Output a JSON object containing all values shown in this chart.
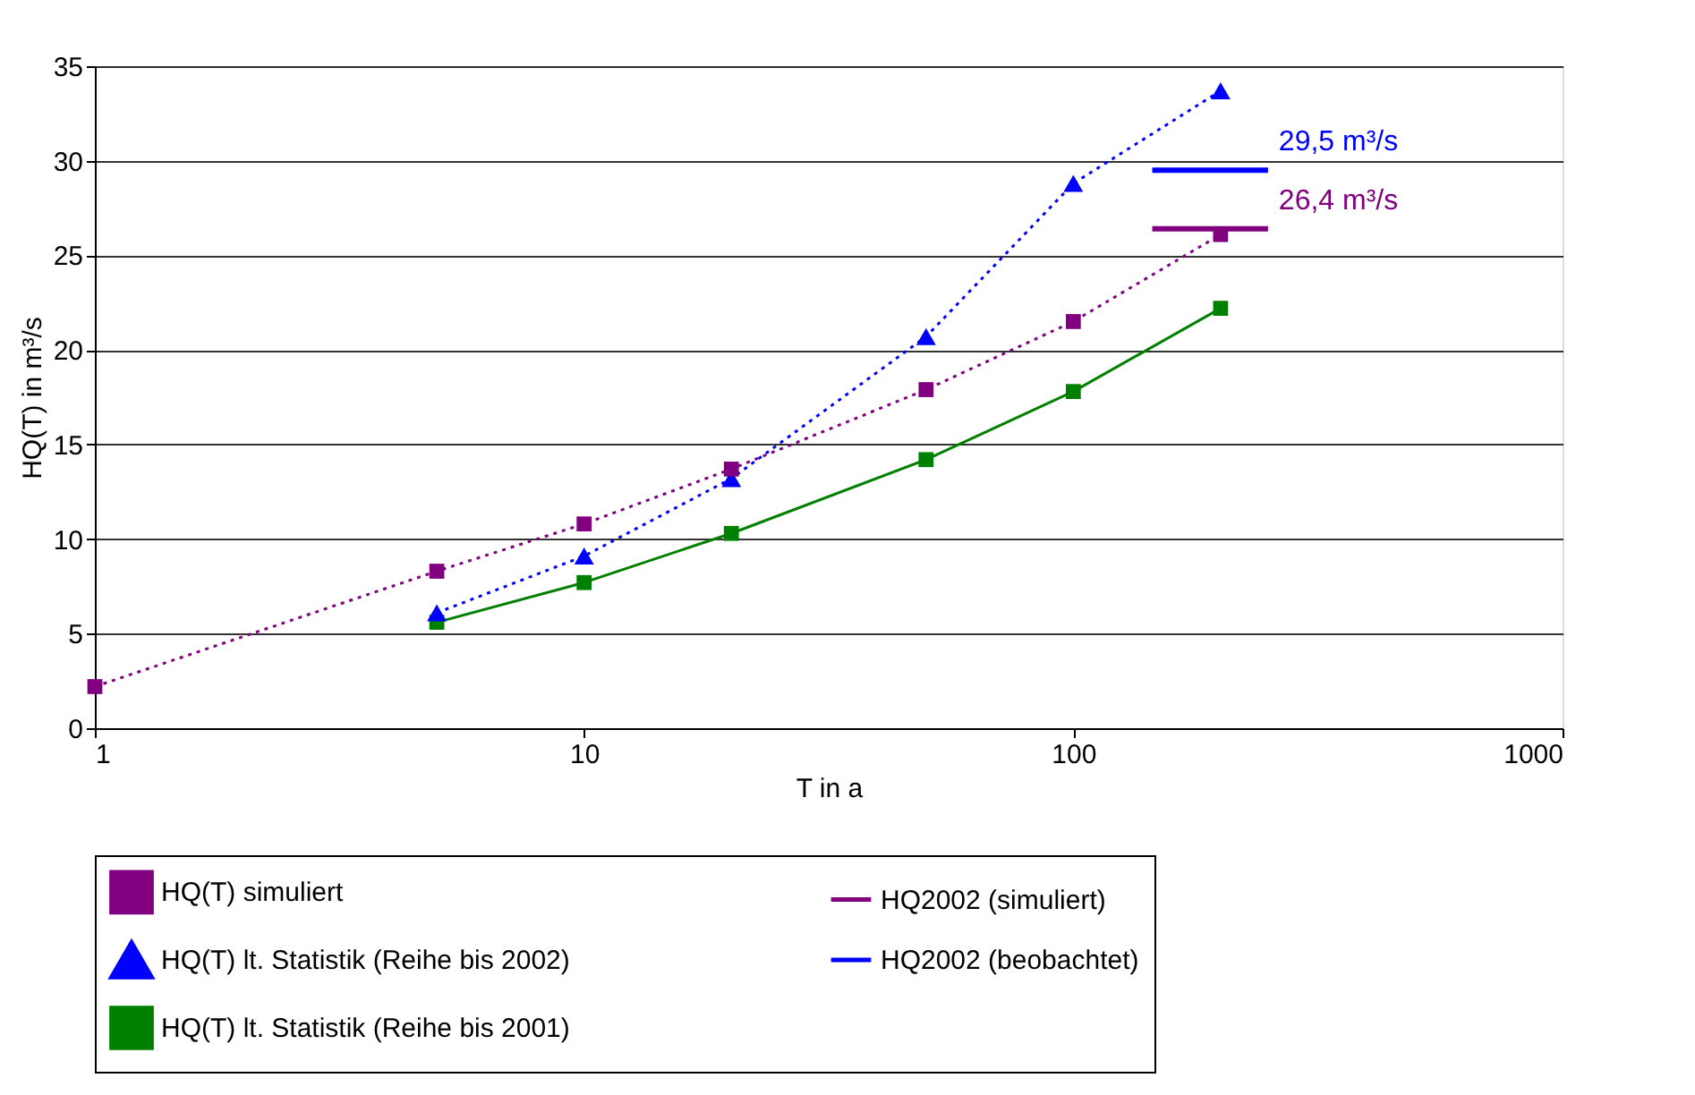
{
  "chart_data": {
    "type": "line",
    "xlabel": "T in a",
    "ylabel": "HQ(T) in m³/s",
    "log": "x",
    "xlim": [
      1,
      1000
    ],
    "xticks": [
      1,
      10,
      100,
      1000
    ],
    "ylim": [
      0,
      35
    ],
    "yticks": [
      0,
      5,
      10,
      15,
      20,
      25,
      30,
      35
    ],
    "grid": "y",
    "legend": "bottom",
    "series": [
      {
        "name": "HQ(T) simuliert",
        "color": "#800080",
        "marker": "square",
        "line_style": "dotted",
        "x": [
          1,
          5,
          10,
          20,
          50,
          100,
          200
        ],
        "values": [
          2.2,
          8.3,
          10.8,
          13.7,
          17.9,
          21.5,
          26.1
        ]
      },
      {
        "name": "HQ(T) lt. Statistik (Reihe bis 2002)",
        "color": "#0000ff",
        "marker": "triangle",
        "line_style": "dotted",
        "x": [
          5,
          10,
          20,
          50,
          100,
          200
        ],
        "values": [
          6.1,
          9.1,
          13.2,
          20.7,
          28.8,
          33.7
        ]
      },
      {
        "name": "HQ(T) lt. Statistik (Reihe bis 2001)",
        "color": "#008000",
        "marker": "square",
        "line_style": "solid",
        "x": [
          5,
          10,
          20,
          50,
          100,
          200
        ],
        "values": [
          5.6,
          7.7,
          10.3,
          14.2,
          17.8,
          22.2
        ]
      },
      {
        "name": "HQ2002 (simuliert)",
        "color": "#800080",
        "marker": "none",
        "line_style": "solid",
        "x": [
          145,
          250
        ],
        "values": [
          26.4,
          26.4
        ]
      },
      {
        "name": "HQ2002 (beobachtet)",
        "color": "#0000ff",
        "marker": "none",
        "line_style": "solid",
        "x": [
          145,
          250
        ],
        "values": [
          29.5,
          29.5
        ]
      }
    ],
    "annotations": [
      {
        "text": "29,5  m³/s",
        "x": 250,
        "y": 29.5
      },
      {
        "text": "26,4 m³/s",
        "x": 250,
        "y": 26.4
      }
    ]
  }
}
